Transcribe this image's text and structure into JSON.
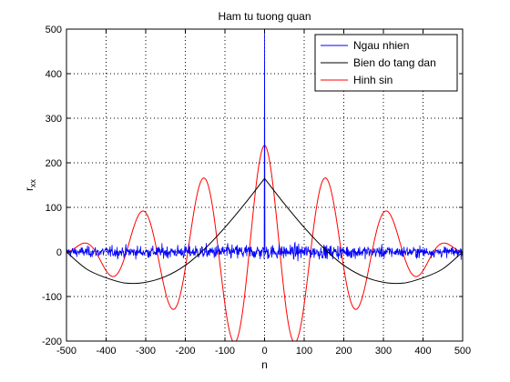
{
  "chart_data": {
    "type": "line",
    "title": "Ham tu tuong quan",
    "xlabel": "n",
    "ylabel": "r",
    "ylabel_subscript": "xx",
    "xlim": [
      -500,
      500
    ],
    "ylim": [
      -200,
      500
    ],
    "xticks": [
      -500,
      -400,
      -300,
      -200,
      -100,
      0,
      100,
      200,
      300,
      400,
      500
    ],
    "yticks": [
      -200,
      -100,
      0,
      100,
      200,
      300,
      400,
      500
    ],
    "grid": true,
    "legend_position": "top-right",
    "series": [
      {
        "name": "Ngau nhien",
        "color": "#0000ff",
        "peak": {
          "x": 0,
          "y": 500
        },
        "noise_amplitude": 20
      },
      {
        "name": "Bien do tang dan",
        "color": "#000000",
        "points": [
          [
            -500,
            0
          ],
          [
            -450,
            -38
          ],
          [
            -400,
            -58
          ],
          [
            -350,
            -70
          ],
          [
            -300,
            -68
          ],
          [
            -250,
            -55
          ],
          [
            -200,
            -30
          ],
          [
            -150,
            8
          ],
          [
            -100,
            55
          ],
          [
            -50,
            108
          ],
          [
            0,
            165
          ],
          [
            50,
            108
          ],
          [
            100,
            55
          ],
          [
            150,
            8
          ],
          [
            200,
            -30
          ],
          [
            250,
            -55
          ],
          [
            300,
            -68
          ],
          [
            350,
            -70
          ],
          [
            400,
            -58
          ],
          [
            450,
            -38
          ],
          [
            500,
            0
          ]
        ]
      },
      {
        "name": "Hinh sin",
        "color": "#ff0000",
        "peak": {
          "x": 0,
          "y": 240
        },
        "period": 155,
        "envelope_width": 500
      }
    ]
  }
}
